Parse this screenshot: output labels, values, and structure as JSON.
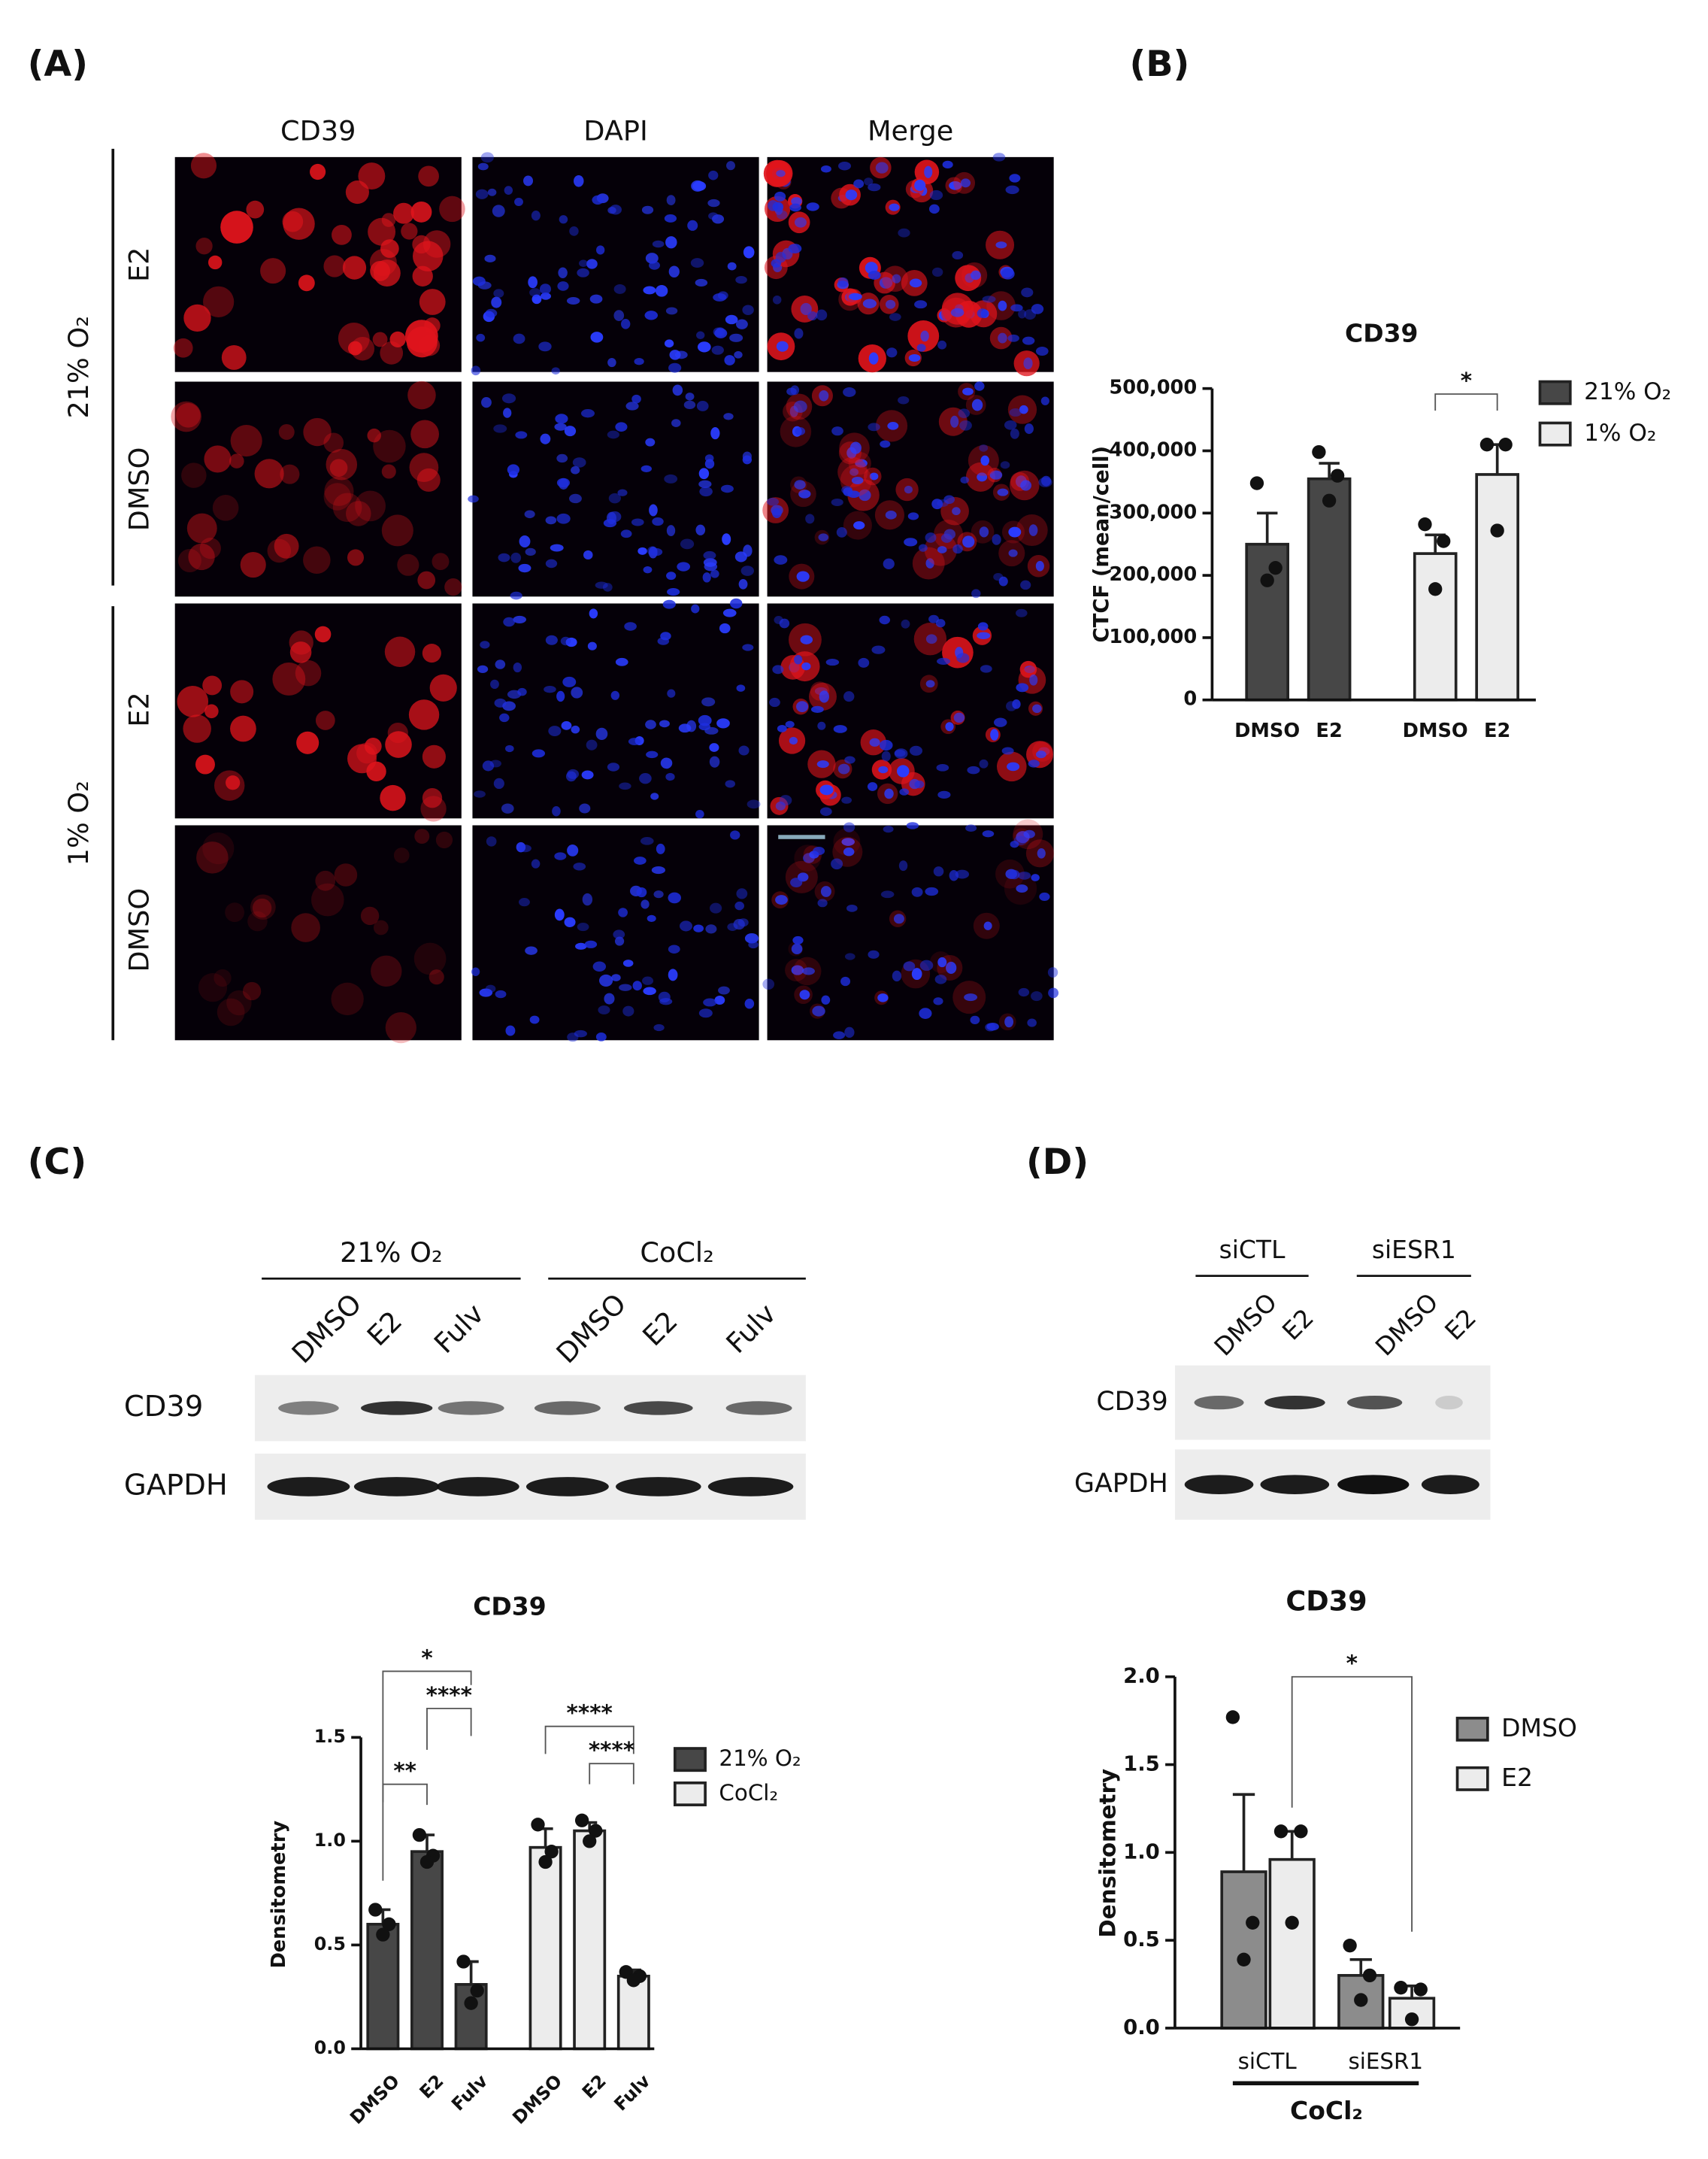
{
  "panel_labels": [
    "(A)",
    "(B)",
    "(C)",
    "(D)"
  ],
  "panel_a": {
    "columns": [
      "CD39",
      "DAPI",
      "Merge"
    ],
    "groups": [
      {
        "label": "21% O₂",
        "rows": [
          "E2",
          "DMSO"
        ]
      },
      {
        "label": "1% O₂",
        "rows": [
          "E2",
          "DMSO"
        ]
      }
    ]
  },
  "blot_c": {
    "groups": [
      {
        "label": "21% O₂",
        "lanes": [
          "DMSO",
          "E2",
          "Fulv"
        ]
      },
      {
        "label": "CoCl₂",
        "lanes": [
          "DMSO",
          "E2",
          "Fulv"
        ]
      }
    ],
    "rows": [
      "CD39",
      "GAPDH"
    ]
  },
  "blot_d": {
    "groups": [
      {
        "label": "siCTL",
        "lanes": [
          "DMSO",
          "E2"
        ]
      },
      {
        "label": "siESR1",
        "lanes": [
          "DMSO",
          "E2"
        ]
      }
    ],
    "rows": [
      "CD39",
      "GAPDH"
    ]
  },
  "chart_data": [
    {
      "type": "bar",
      "title": "CD39",
      "ylabel": "CTCF (mean/cell)",
      "categories": [
        "DMSO",
        "E2"
      ],
      "series": [
        {
          "name": "21% O₂",
          "color": "#474747",
          "values": [
            250000,
            355000
          ],
          "errors": [
            50000,
            25000
          ],
          "points": [
            [
              348000,
              212000,
              192000
            ],
            [
              398000,
              360000,
              320000
            ]
          ]
        },
        {
          "name": "1% O₂",
          "color": "#ececec",
          "values": [
            235000,
            362000
          ],
          "errors": [
            30000,
            48000
          ],
          "points": [
            [
              282000,
              255000,
              178000
            ],
            [
              410000,
              410000,
              272000
            ]
          ]
        }
      ],
      "ylim": [
        0,
        500000
      ],
      "yticks": [
        0,
        {
          "value": 100000,
          "label": "100,000"
        },
        {
          "value": 200000,
          "label": "200,000"
        },
        {
          "value": 300000,
          "label": "300,000"
        },
        {
          "value": 400000,
          "label": "400,000"
        },
        {
          "value": 500000,
          "label": "500,000"
        }
      ],
      "significance": [
        "*"
      ],
      "grid": false,
      "legend": "upper right"
    },
    {
      "type": "bar",
      "title": "CD39",
      "ylabel": "Densitometry",
      "categories": [
        "DMSO",
        "E2",
        "Fulv"
      ],
      "series": [
        {
          "name": "21% O₂",
          "color": "#474747",
          "values": [
            0.6,
            0.95,
            0.31
          ],
          "errors": [
            0.07,
            0.08,
            0.11
          ],
          "points": [
            [
              0.67,
              0.6,
              0.55
            ],
            [
              1.03,
              0.93,
              0.9
            ],
            [
              0.42,
              0.28,
              0.22
            ]
          ]
        },
        {
          "name": "CoCl₂",
          "color": "#ececec",
          "values": [
            0.97,
            1.05,
            0.35
          ],
          "errors": [
            0.09,
            0.04,
            0.03
          ],
          "points": [
            [
              1.08,
              0.95,
              0.9
            ],
            [
              1.1,
              1.05,
              1.0
            ],
            [
              0.37,
              0.35,
              0.33
            ]
          ]
        }
      ],
      "ylim": [
        0,
        1.5
      ],
      "yticks": [
        {
          "value": 0,
          "label": "0.0"
        },
        0.5,
        {
          "value": 1,
          "label": "1.0"
        },
        1.5
      ],
      "significance": [
        "*",
        "****",
        "**",
        "****",
        "****"
      ],
      "grid": false,
      "legend": "upper right"
    },
    {
      "type": "bar",
      "title": "CD39",
      "ylabel": "Densitometry",
      "xlabel": "CoCl₂",
      "categories": [
        "siCTL",
        "siESR1"
      ],
      "series": [
        {
          "name": "DMSO",
          "color": "#8c8c8c",
          "values": [
            0.89,
            0.3
          ],
          "errors": [
            0.44,
            0.09
          ],
          "points": [
            [
              1.77,
              0.6,
              0.39
            ],
            [
              0.47,
              0.3,
              0.16
            ]
          ]
        },
        {
          "name": "E2",
          "color": "#ececec",
          "values": [
            0.96,
            0.17
          ],
          "errors": [
            0.16,
            0.07
          ],
          "points": [
            [
              1.12,
              1.12,
              0.6
            ],
            [
              0.23,
              0.22,
              0.05
            ]
          ]
        }
      ],
      "ylim": [
        0,
        2
      ],
      "yticks": [
        {
          "value": 0,
          "label": "0.0"
        },
        0.5,
        {
          "value": 1,
          "label": "1.0"
        },
        1.5,
        {
          "value": 2,
          "label": "2.0"
        }
      ],
      "significance": [
        "*"
      ],
      "grid": false,
      "legend": "upper right"
    }
  ]
}
